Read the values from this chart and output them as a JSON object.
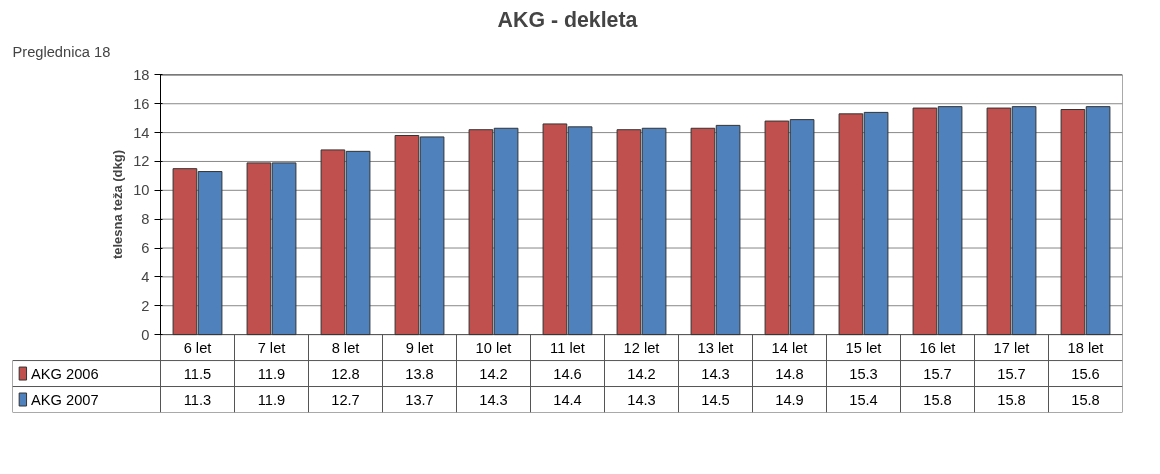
{
  "chart_data": {
    "type": "bar",
    "title": "AKG - dekleta",
    "ylabel": "telesna teža (dkg)",
    "annotations": [
      "Preglednica 18"
    ],
    "categories": [
      "6 let",
      "7 let",
      "8 let",
      "9 let",
      "10 let",
      "11 let",
      "12 let",
      "13 let",
      "14 let",
      "15 let",
      "16 let",
      "17 let",
      "18 let"
    ],
    "series": [
      {
        "name": "AKG 2006",
        "color": "#c0504d",
        "values": [
          11.5,
          11.9,
          12.8,
          13.8,
          14.2,
          14.6,
          14.2,
          14.3,
          14.8,
          15.3,
          15.7,
          15.7,
          15.6
        ]
      },
      {
        "name": "AKG 2007",
        "color": "#4f81bd",
        "values": [
          11.3,
          11.9,
          12.7,
          13.7,
          14.3,
          14.4,
          14.3,
          14.5,
          14.9,
          15.4,
          15.8,
          15.8,
          15.8
        ]
      }
    ],
    "ylim": [
      0,
      18
    ],
    "yticks": [
      0,
      2,
      4,
      6,
      8,
      10,
      12,
      14,
      16,
      18
    ],
    "grid": "y",
    "legend": "bottom",
    "data_labels": true
  }
}
